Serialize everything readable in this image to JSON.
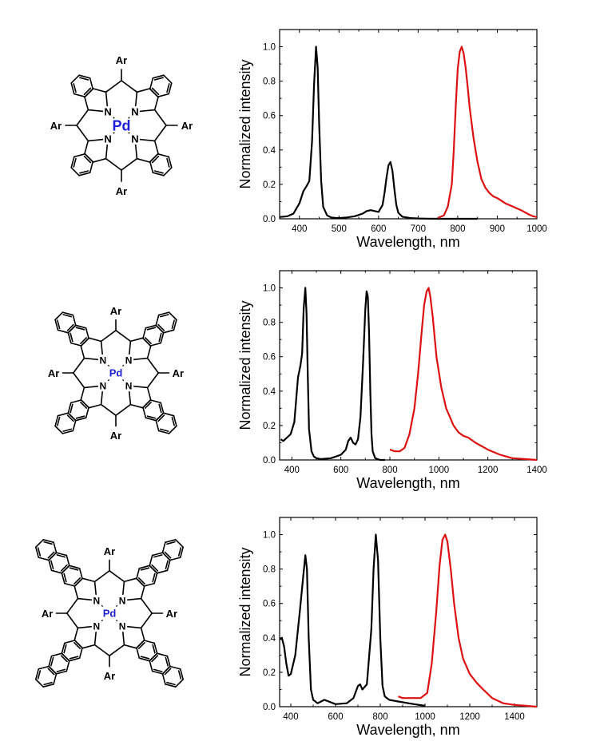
{
  "metal_color": "#1f1fd8",
  "absorption_color": "#000000",
  "emission_color": "#dd1111",
  "molecules": [
    {
      "extension": 1,
      "metal": "Pd",
      "substituent": "Ar",
      "donor": "N"
    },
    {
      "extension": 2,
      "metal": "Pd",
      "substituent": "Ar",
      "donor": "N"
    },
    {
      "extension": 3,
      "metal": "Pd",
      "substituent": "Ar",
      "donor": "N"
    }
  ],
  "chart_data": [
    {
      "type": "line",
      "xlabel": "Wavelength, nm",
      "ylabel": "Normalized intensity",
      "xlim": [
        350,
        1000
      ],
      "ylim": [
        0,
        1.1
      ],
      "xticks": [
        400,
        500,
        600,
        700,
        800,
        900,
        1000
      ],
      "yticks": [
        0.0,
        0.2,
        0.4,
        0.6,
        0.8,
        1.0
      ],
      "series": [
        {
          "color": "#000000",
          "x": [
            350,
            370,
            385,
            400,
            410,
            418,
            425,
            432,
            437,
            442,
            446,
            450,
            455,
            460,
            470,
            480,
            490,
            500,
            520,
            540,
            560,
            570,
            580,
            590,
            600,
            610,
            615,
            620,
            625,
            630,
            635,
            640,
            645,
            650,
            660,
            680,
            700,
            720,
            750,
            780,
            800,
            830,
            850
          ],
          "y": [
            0.01,
            0.015,
            0.03,
            0.09,
            0.16,
            0.19,
            0.22,
            0.45,
            0.78,
            1.0,
            0.88,
            0.55,
            0.22,
            0.07,
            0.02,
            0.008,
            0.005,
            0.004,
            0.008,
            0.015,
            0.03,
            0.045,
            0.05,
            0.045,
            0.04,
            0.08,
            0.15,
            0.24,
            0.31,
            0.33,
            0.28,
            0.17,
            0.08,
            0.035,
            0.012,
            0.004,
            0.002,
            0.001,
            0.0,
            0.0,
            0.0,
            0.0,
            0.0
          ]
        },
        {
          "color": "#dd1111",
          "x": [
            750,
            765,
            775,
            785,
            790,
            795,
            800,
            805,
            810,
            815,
            820,
            825,
            830,
            840,
            850,
            860,
            870,
            880,
            890,
            900,
            920,
            940,
            960,
            980,
            990,
            1000
          ],
          "y": [
            0.005,
            0.02,
            0.07,
            0.2,
            0.4,
            0.65,
            0.87,
            0.97,
            1.0,
            0.96,
            0.88,
            0.77,
            0.65,
            0.47,
            0.33,
            0.23,
            0.18,
            0.15,
            0.13,
            0.12,
            0.09,
            0.07,
            0.05,
            0.025,
            0.015,
            0.01
          ]
        }
      ]
    },
    {
      "type": "line",
      "xlabel": "Wavelength, nm",
      "ylabel": "Normalized intensity",
      "xlim": [
        350,
        1400
      ],
      "ylim": [
        0,
        1.1
      ],
      "xticks": [
        400,
        600,
        800,
        1000,
        1200,
        1400
      ],
      "yticks": [
        0.0,
        0.2,
        0.4,
        0.6,
        0.8,
        1.0
      ],
      "series": [
        {
          "color": "#000000",
          "x": [
            355,
            365,
            380,
            395,
            410,
            425,
            435,
            442,
            448,
            455,
            460,
            465,
            470,
            480,
            490,
            500,
            520,
            560,
            600,
            620,
            630,
            640,
            650,
            660,
            670,
            680,
            690,
            700,
            705,
            710,
            715,
            720,
            725,
            730,
            740,
            760,
            780
          ],
          "y": [
            0.12,
            0.11,
            0.13,
            0.15,
            0.22,
            0.48,
            0.55,
            0.62,
            0.88,
            1.0,
            0.85,
            0.48,
            0.18,
            0.05,
            0.02,
            0.01,
            0.005,
            0.01,
            0.03,
            0.06,
            0.11,
            0.13,
            0.1,
            0.09,
            0.12,
            0.25,
            0.55,
            0.88,
            0.98,
            0.95,
            0.75,
            0.4,
            0.15,
            0.05,
            0.01,
            0.0,
            0.0
          ]
        },
        {
          "color": "#dd1111",
          "x": [
            800,
            820,
            840,
            860,
            880,
            900,
            915,
            930,
            940,
            950,
            958,
            965,
            975,
            990,
            1010,
            1030,
            1060,
            1080,
            1100,
            1120,
            1150,
            1200,
            1250,
            1300,
            1350,
            1400
          ],
          "y": [
            0.06,
            0.05,
            0.05,
            0.07,
            0.15,
            0.3,
            0.5,
            0.75,
            0.9,
            0.98,
            1.0,
            0.95,
            0.83,
            0.6,
            0.42,
            0.3,
            0.2,
            0.16,
            0.14,
            0.13,
            0.1,
            0.06,
            0.03,
            0.01,
            0.005,
            0.0
          ]
        }
      ]
    },
    {
      "type": "line",
      "xlabel": "Wavelength, nm",
      "ylabel": "Normalized intensity",
      "xlim": [
        350,
        1500
      ],
      "ylim": [
        0,
        1.1
      ],
      "xticks": [
        400,
        600,
        800,
        1000,
        1200,
        1400
      ],
      "yticks": [
        0.0,
        0.2,
        0.4,
        0.6,
        0.8,
        1.0
      ],
      "series": [
        {
          "color": "#000000",
          "x": [
            350,
            360,
            370,
            380,
            390,
            400,
            420,
            440,
            455,
            465,
            472,
            480,
            490,
            500,
            520,
            550,
            600,
            650,
            680,
            700,
            710,
            720,
            740,
            760,
            770,
            780,
            790,
            800,
            810,
            820,
            840,
            880,
            950,
            1000
          ],
          "y": [
            0.39,
            0.4,
            0.35,
            0.25,
            0.18,
            0.19,
            0.3,
            0.55,
            0.75,
            0.88,
            0.8,
            0.4,
            0.1,
            0.04,
            0.02,
            0.04,
            0.015,
            0.02,
            0.05,
            0.12,
            0.13,
            0.1,
            0.13,
            0.45,
            0.8,
            1.0,
            0.85,
            0.4,
            0.12,
            0.06,
            0.04,
            0.03,
            0.015,
            0.005
          ]
        },
        {
          "color": "#dd1111",
          "x": [
            880,
            900,
            940,
            980,
            1010,
            1030,
            1050,
            1065,
            1078,
            1090,
            1100,
            1115,
            1130,
            1150,
            1170,
            1200,
            1230,
            1260,
            1300,
            1350,
            1400,
            1450,
            1500
          ],
          "y": [
            0.06,
            0.05,
            0.05,
            0.05,
            0.08,
            0.25,
            0.55,
            0.82,
            0.97,
            1.0,
            0.96,
            0.8,
            0.6,
            0.4,
            0.28,
            0.19,
            0.14,
            0.1,
            0.05,
            0.02,
            0.01,
            0.005,
            0.0
          ]
        }
      ]
    }
  ]
}
